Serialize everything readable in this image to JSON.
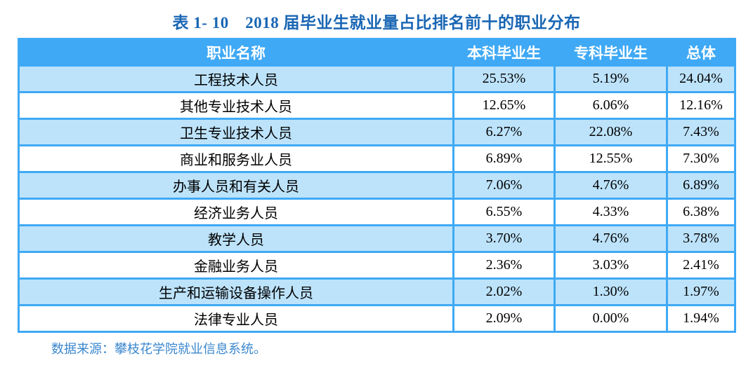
{
  "title": "表 1- 10　2018 届毕业生就业量占比排名前十的职业分布",
  "colors": {
    "header_bg": "#3FA9F5",
    "alt_row_bg": "#BDE3FB",
    "border": "#3FA9F5",
    "title_text": "#1966B4",
    "footer_text": "#3A87CE",
    "header_text": "#FFFFFF",
    "cell_text": "#000000"
  },
  "table": {
    "columns": [
      "职业名称",
      "本科毕业生",
      "专科毕业生",
      "总体"
    ],
    "rows": [
      {
        "name": "工程技术人员",
        "undergraduate": "25.53%",
        "junior_college": "5.19%",
        "overall": "24.04%"
      },
      {
        "name": "其他专业技术人员",
        "undergraduate": "12.65%",
        "junior_college": "6.06%",
        "overall": "12.16%"
      },
      {
        "name": "卫生专业技术人员",
        "undergraduate": "6.27%",
        "junior_college": "22.08%",
        "overall": "7.43%"
      },
      {
        "name": "商业和服务业人员",
        "undergraduate": "6.89%",
        "junior_college": "12.55%",
        "overall": "7.30%"
      },
      {
        "name": "办事人员和有关人员",
        "undergraduate": "7.06%",
        "junior_college": "4.76%",
        "overall": "6.89%"
      },
      {
        "name": "经济业务人员",
        "undergraduate": "6.55%",
        "junior_college": "4.33%",
        "overall": "6.38%"
      },
      {
        "name": "教学人员",
        "undergraduate": "3.70%",
        "junior_college": "4.76%",
        "overall": "3.78%"
      },
      {
        "name": "金融业务人员",
        "undergraduate": "2.36%",
        "junior_college": "3.03%",
        "overall": "2.41%"
      },
      {
        "name": "生产和运输设备操作人员",
        "undergraduate": "2.02%",
        "junior_college": "1.30%",
        "overall": "1.97%"
      },
      {
        "name": "法律专业人员",
        "undergraduate": "2.09%",
        "junior_college": "0.00%",
        "overall": "1.94%"
      }
    ]
  },
  "footer": {
    "source_note": "数据来源：攀枝花学院就业信息系统。"
  }
}
